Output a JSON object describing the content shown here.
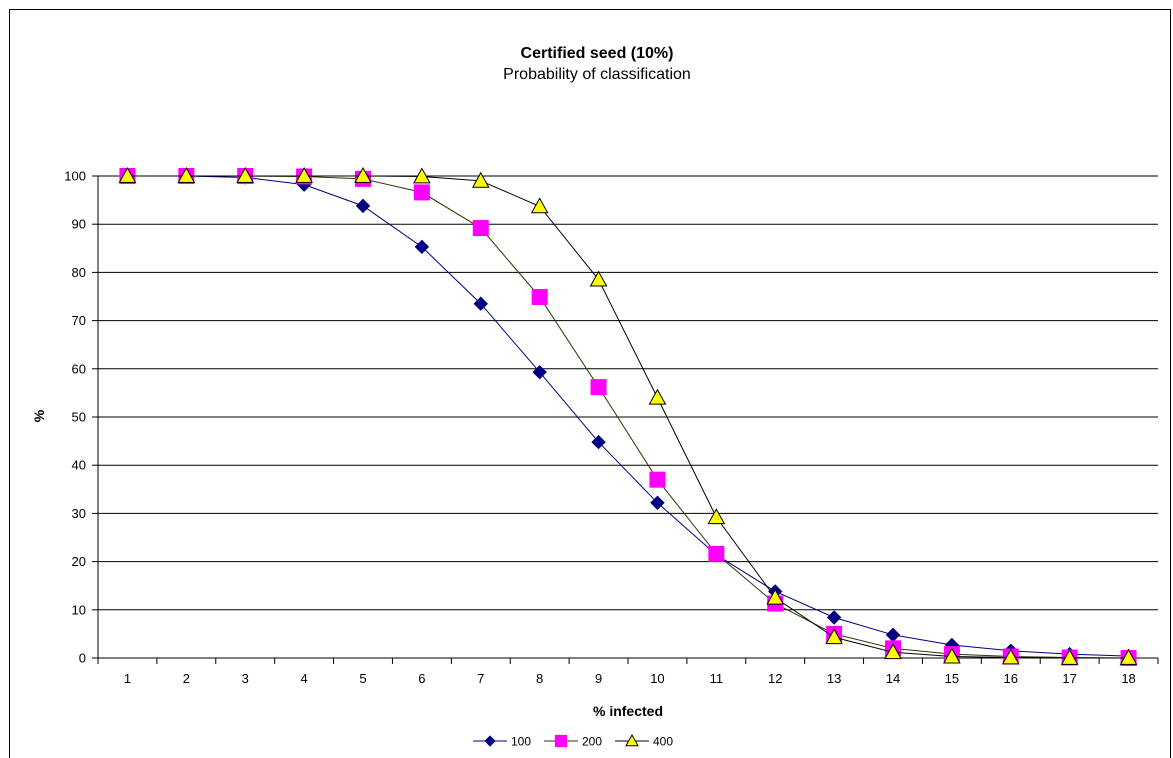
{
  "chart_data": {
    "type": "line",
    "title": "Certified seed (10%)",
    "subtitle": "Probability of classification",
    "xlabel": "% infected",
    "ylabel": "%",
    "ylim": [
      0,
      100
    ],
    "yticks": [
      0,
      10,
      20,
      30,
      40,
      50,
      60,
      70,
      80,
      90,
      100
    ],
    "categories": [
      "1",
      "2",
      "3",
      "4",
      "5",
      "6",
      "7",
      "8",
      "9",
      "10",
      "11",
      "12",
      "13",
      "14",
      "15",
      "16",
      "17",
      "18"
    ],
    "grid": "horizontal",
    "legend_position": "bottom",
    "series": [
      {
        "name": "100",
        "color": "#000080",
        "marker": "diamond",
        "values": [
          100,
          100,
          99.7,
          98.2,
          93.8,
          85.3,
          73.5,
          59.3,
          44.8,
          32.2,
          21.4,
          13.8,
          8.4,
          4.8,
          2.7,
          1.5,
          0.8,
          0.4
        ]
      },
      {
        "name": "200",
        "color": "#FF00FF",
        "marker": "square",
        "values": [
          100,
          100,
          100,
          99.9,
          99.4,
          96.6,
          89.2,
          74.9,
          56.2,
          37.0,
          21.6,
          11.3,
          5.0,
          2.0,
          0.8,
          0.3,
          0.1,
          0.0
        ]
      },
      {
        "name": "400",
        "color": "#FFFF00",
        "marker": "triangle",
        "values": [
          100,
          100,
          100,
          100,
          100,
          99.9,
          99.0,
          93.7,
          78.5,
          54.0,
          29.2,
          12.5,
          4.3,
          1.2,
          0.3,
          0.1,
          0.0,
          0.0
        ]
      }
    ]
  }
}
